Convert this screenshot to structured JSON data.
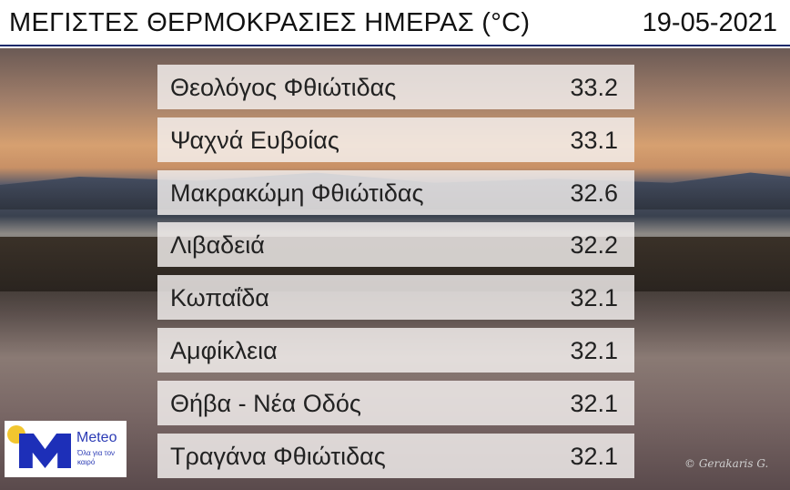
{
  "header": {
    "title": "ΜΕΓΙΣΤΕΣ ΘΕΡΜΟΚΡΑΣΙΕΣ ΗΜΕΡΑΣ (°C)",
    "date": "19-05-2021"
  },
  "rows": [
    {
      "name": "Θεολόγος Φθιώτιδας",
      "value": "33.2"
    },
    {
      "name": "Ψαχνά Ευβοίας",
      "value": "33.1"
    },
    {
      "name": "Μακρακώμη Φθιώτιδας",
      "value": "32.6"
    },
    {
      "name": "Λιβαδειά",
      "value": "32.2"
    },
    {
      "name": "Κωπαΐδα",
      "value": "32.1"
    },
    {
      "name": "Αμφίκλεια",
      "value": "32.1"
    },
    {
      "name": "Θήβα - Νέα Οδός",
      "value": "32.1"
    },
    {
      "name": "Τραγάνα Φθιώτιδας",
      "value": "32.1"
    }
  ],
  "logo": {
    "brand": "Meteo",
    "tagline": "Όλα για τον καιρό"
  },
  "credit": "© Gerakaris G.",
  "colors": {
    "accent": "#1d2fb8",
    "sun": "#f2c62f"
  }
}
